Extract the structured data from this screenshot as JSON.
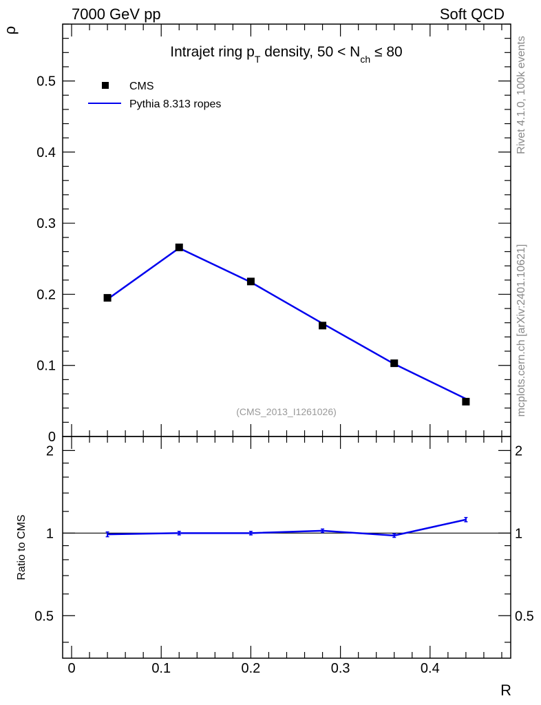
{
  "header": {
    "left": "7000 GeV pp",
    "right": "Soft QCD"
  },
  "side_text": {
    "rivet": "Rivet 4.1.0,  100k events",
    "mcplots": "mcplots.cern.ch [arXiv:2401.10621]"
  },
  "watermark": "(CMS_2013_I1261026)",
  "colors": {
    "data": "#000000",
    "mc": "#0000ee",
    "frame": "#000000"
  },
  "chart_data": [
    {
      "type": "scatter",
      "title": "Intrajet ring p_T density, 50 < N_ch ≤ 80",
      "title_parts": {
        "a": "Intrajet ring p",
        "a_sub": "T",
        "b": " density, 50 < N",
        "b_sub": "ch",
        "c": " ≤ 80"
      },
      "ylabel": "ρ",
      "xlabel": "R",
      "xlim": [
        -0.01,
        0.49
      ],
      "ylim": [
        0,
        0.58
      ],
      "yticks": [
        {
          "v": 0.1,
          "label": "0.1"
        },
        {
          "v": 0.2,
          "label": "0.2"
        },
        {
          "v": 0.3,
          "label": "0.3"
        },
        {
          "v": 0.4,
          "label": "0.4"
        },
        {
          "v": 0.5,
          "label": "0.5"
        }
      ],
      "y_zero_label": "0",
      "legend": {
        "position": "top-left",
        "entries": [
          {
            "label": "CMS",
            "kind": "marker"
          },
          {
            "label": "Pythia 8.313 ropes",
            "kind": "line"
          }
        ]
      },
      "series": [
        {
          "name": "CMS",
          "x": [
            0.04,
            0.12,
            0.2,
            0.28,
            0.36,
            0.44
          ],
          "y": [
            0.195,
            0.266,
            0.218,
            0.156,
            0.103,
            0.049
          ],
          "yerr": [
            0.004,
            0.004,
            0.003,
            0.003,
            0.002,
            0.002
          ]
        },
        {
          "name": "Pythia 8.313 ropes",
          "x": [
            0.04,
            0.12,
            0.2,
            0.28,
            0.36,
            0.44
          ],
          "y": [
            0.193,
            0.265,
            0.217,
            0.159,
            0.102,
            0.053
          ]
        }
      ]
    },
    {
      "type": "line",
      "ylabel": "Ratio to CMS",
      "xlabel": "R",
      "xlim": [
        -0.01,
        0.49
      ],
      "ylim": [
        0.35,
        2.25
      ],
      "yticks": [
        {
          "v": 0.5,
          "label": "0.5"
        },
        {
          "v": 1,
          "label": "1"
        },
        {
          "v": 2,
          "label": "2"
        }
      ],
      "xticks": [
        {
          "v": 0,
          "label": "0"
        },
        {
          "v": 0.1,
          "label": "0.1"
        },
        {
          "v": 0.2,
          "label": "0.2"
        },
        {
          "v": 0.3,
          "label": "0.3"
        },
        {
          "v": 0.4,
          "label": "0.4"
        }
      ],
      "reference": 1,
      "series": [
        {
          "name": "Pythia 8.313 ropes / CMS",
          "x": [
            0.04,
            0.12,
            0.2,
            0.28,
            0.36,
            0.44
          ],
          "y": [
            0.99,
            1.0,
            1.0,
            1.02,
            0.98,
            1.12
          ],
          "yerr": [
            0.02,
            0.015,
            0.015,
            0.015,
            0.015,
            0.02
          ]
        }
      ]
    }
  ]
}
